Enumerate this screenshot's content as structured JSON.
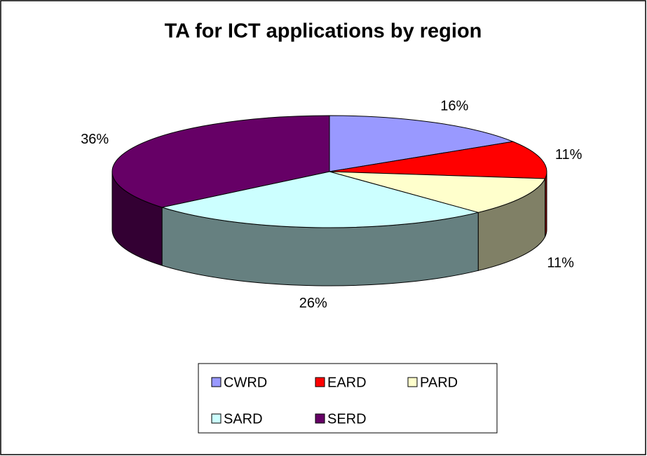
{
  "chart_data": {
    "type": "pie",
    "title": "TA for ICT applications by region",
    "categories": [
      "CWRD",
      "EARD",
      "PARD",
      "SARD",
      "SERD"
    ],
    "values": [
      16,
      11,
      11,
      26,
      36
    ],
    "value_labels": [
      "16%",
      "11%",
      "11%",
      "26%",
      "36%"
    ],
    "colors": [
      "#9999ff",
      "#ff0000",
      "#ffffcc",
      "#ccffff",
      "#660066"
    ],
    "legend": "bottom"
  }
}
